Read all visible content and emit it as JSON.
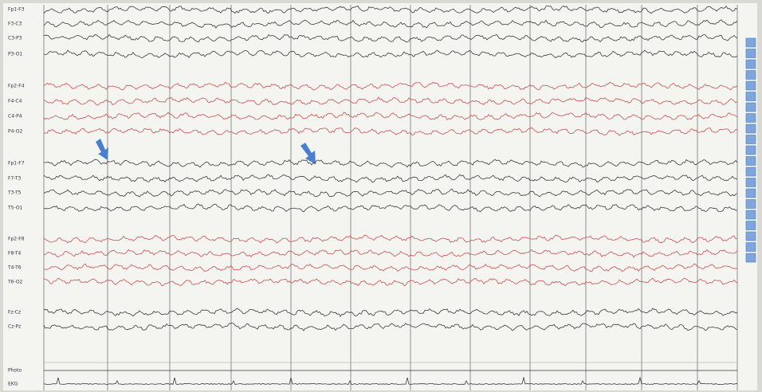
{
  "channels": [
    {
      "label": "Fp1-F3",
      "color": "#3a3a3a"
    },
    {
      "label": "F3-C3",
      "color": "#3a3a3a"
    },
    {
      "label": "C3-P3",
      "color": "#3a3a3a"
    },
    {
      "label": "P3-O1",
      "color": "#3a3a3a"
    },
    {
      "label": "Fp2-F4",
      "color": "#c9504f"
    },
    {
      "label": "F4-C4",
      "color": "#c9504f"
    },
    {
      "label": "C4-P4",
      "color": "#c9504f"
    },
    {
      "label": "P4-O2",
      "color": "#c9504f"
    },
    {
      "label": "Fp1-F7",
      "color": "#3a3a3a"
    },
    {
      "label": "F7-T3",
      "color": "#3a3a3a"
    },
    {
      "label": "T3-T5",
      "color": "#3a3a3a"
    },
    {
      "label": "T5-O1",
      "color": "#3a3a3a"
    },
    {
      "label": "Fp2-F8",
      "color": "#c9504f"
    },
    {
      "label": "F8-T4",
      "color": "#c9504f"
    },
    {
      "label": "T4-T6",
      "color": "#c9504f"
    },
    {
      "label": "T6-O2",
      "color": "#c9504f"
    },
    {
      "label": "Fz-Cz",
      "color": "#3a3a3a"
    },
    {
      "label": "Cz-Pz",
      "color": "#3a3a3a"
    },
    {
      "label": "Photo",
      "color": "#3a3a3a"
    },
    {
      "label": "EKG",
      "color": "#3a3a3a"
    }
  ]
}
